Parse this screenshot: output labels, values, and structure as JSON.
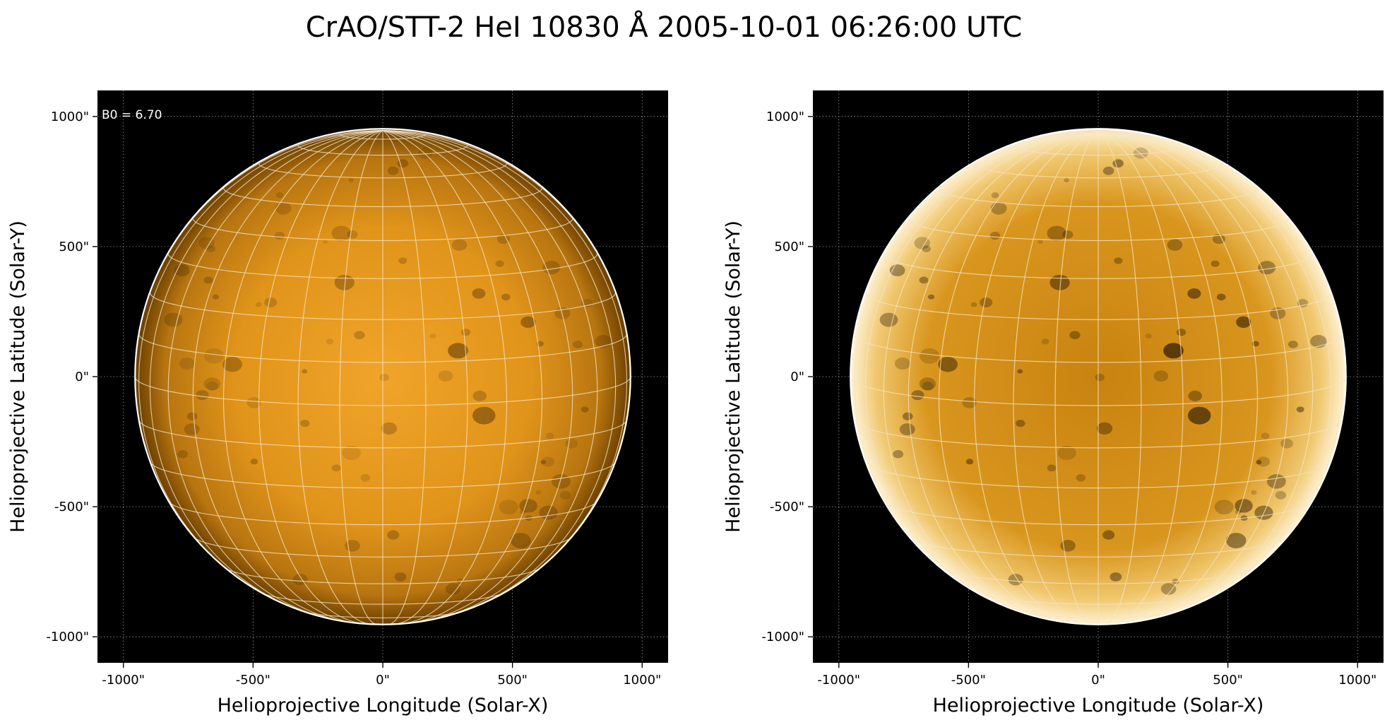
{
  "figure": {
    "title": "CrAO/STT-2 HeI 10830 Å 2005-10-01 06:26:00 UTC",
    "b0_label": "B0 = 6.70"
  },
  "axes": {
    "xlabel": "Helioprojective Longitude (Solar-X)",
    "ylabel": "Helioprojective Latitude (Solar-Y)",
    "x_ticks": [
      "-1000\"",
      "-500\"",
      "0\"",
      "500\"",
      "1000\""
    ],
    "y_ticks": [
      "1000\"",
      "500\"",
      "0\"",
      "-500\"",
      "-1000\""
    ],
    "range_arcsec": [
      -1100,
      1100
    ],
    "tick_values_arcsec": [
      -1000,
      -500,
      0,
      500,
      1000
    ]
  },
  "panels": [
    {
      "name": "left-panel",
      "style": "original",
      "show_b0": true
    },
    {
      "name": "right-panel",
      "style": "limb-enhanced",
      "show_b0": false
    }
  ],
  "colors": {
    "background": "#000000",
    "disk_center": "#e89a1a",
    "disk_limb": "#6b3f00",
    "enhanced_center": "#c47f0c",
    "enhanced_limb": "#fff2d4",
    "grid": "#f2e0c0",
    "limb_line": "#ffffff"
  },
  "solar_radius_arcsec": 955,
  "b0_degrees": 6.7
}
